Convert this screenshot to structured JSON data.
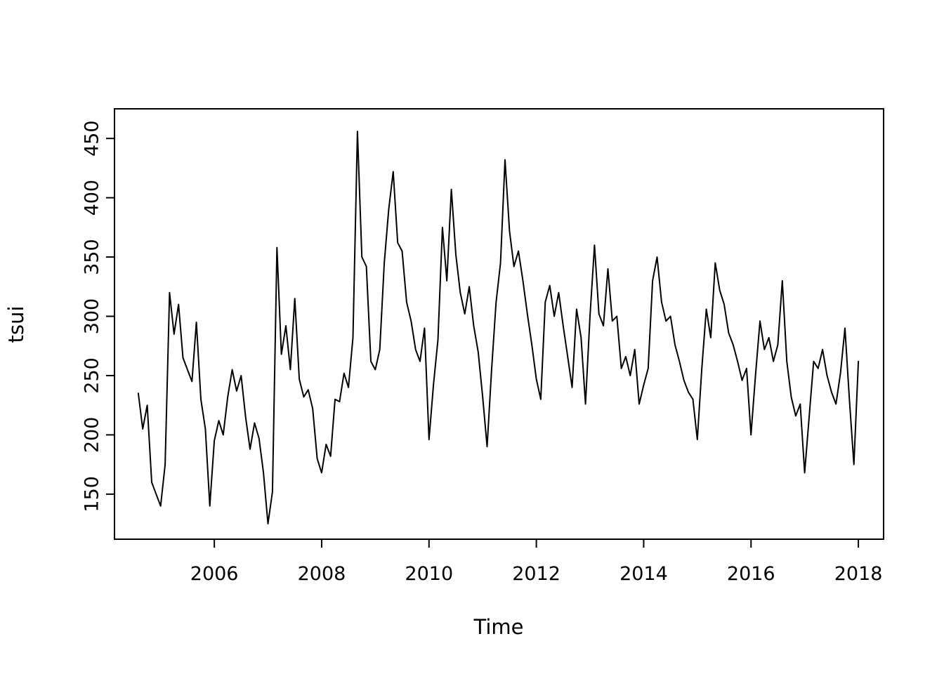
{
  "page": {
    "background": "#ffffff",
    "foreground": "#000000"
  },
  "chart_data": {
    "type": "line",
    "title": "",
    "xlabel": "Time",
    "ylabel": "tsui",
    "xlim": [
      2004.14,
      2018.47
    ],
    "ylim": [
      112,
      475
    ],
    "x_ticks": [
      2006,
      2008,
      2010,
      2012,
      2014,
      2016,
      2018
    ],
    "y_ticks": [
      150,
      200,
      250,
      300,
      350,
      400,
      450
    ],
    "grid": false,
    "legend": "none",
    "line_color": "#000000",
    "box": true,
    "series": [
      {
        "name": "tsui",
        "x_start": 2004.583,
        "x_step": 0.0833333,
        "values": [
          235,
          205,
          225,
          160,
          150,
          140,
          175,
          320,
          285,
          310,
          265,
          255,
          245,
          295,
          230,
          205,
          140,
          195,
          212,
          200,
          232,
          255,
          237,
          250,
          215,
          188,
          210,
          197,
          168,
          125,
          152,
          358,
          268,
          292,
          255,
          315,
          247,
          232,
          238,
          222,
          180,
          168,
          192,
          182,
          230,
          228,
          252,
          240,
          282,
          456,
          350,
          342,
          262,
          255,
          272,
          345,
          390,
          422,
          362,
          355,
          312,
          296,
          272,
          262,
          290,
          196,
          242,
          280,
          375,
          330,
          407,
          352,
          320,
          302,
          325,
          292,
          270,
          232,
          190,
          255,
          312,
          345,
          432,
          372,
          342,
          355,
          330,
          302,
          276,
          247,
          230,
          312,
          326,
          300,
          320,
          292,
          266,
          240,
          306,
          282,
          226,
          300,
          360,
          302,
          292,
          340,
          296,
          300,
          256,
          266,
          250,
          272,
          226,
          242,
          256,
          330,
          350,
          312,
          296,
          300,
          276,
          262,
          246,
          236,
          230,
          196,
          256,
          306,
          282,
          345,
          322,
          310,
          286,
          276,
          262,
          246,
          256,
          200,
          250,
          296,
          272,
          282,
          262,
          276,
          330,
          262,
          232,
          216,
          226,
          168,
          215,
          262,
          256,
          272,
          250,
          236,
          226,
          252,
          290,
          230,
          175,
          262
        ]
      }
    ]
  }
}
